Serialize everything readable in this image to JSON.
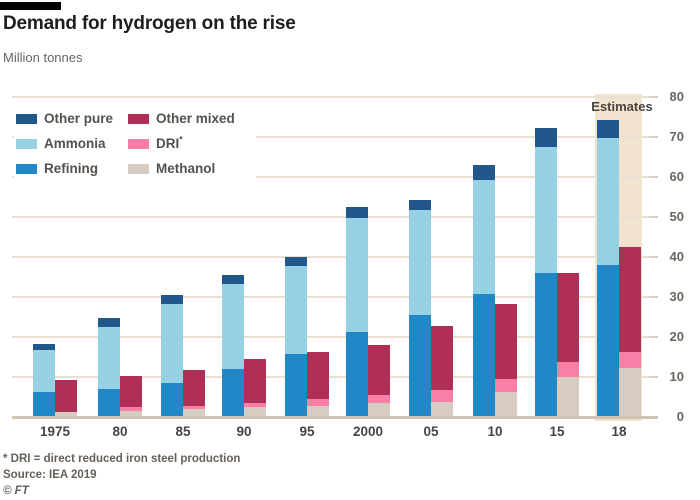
{
  "header": {
    "title": "Demand for hydrogen on the rise",
    "subtitle": "Million tonnes"
  },
  "estimates_label": "Estimates",
  "legend": {
    "columns": [
      [
        {
          "label": "Other pure",
          "color_key": "other_pure"
        },
        {
          "label": "Ammonia",
          "color_key": "ammonia"
        },
        {
          "label": "Refining",
          "color_key": "refining"
        }
      ],
      [
        {
          "label": "Other mixed",
          "color_key": "other_mixed"
        },
        {
          "label": "DRI",
          "sup": "*",
          "color_key": "dri"
        },
        {
          "label": "Methanol",
          "color_key": "methanol"
        }
      ]
    ]
  },
  "colors": {
    "other_pure": "#21578a",
    "ammonia": "#96d1e4",
    "refining": "#2287c6",
    "other_mixed": "#b02f57",
    "dri": "#f97fa7",
    "methanol": "#d6ccc1",
    "estimates_band": "#f2e3cf",
    "gridline": "#e9e0d2",
    "baseline": "#cfc4b5",
    "tick": "#d9cebf"
  },
  "chart_data": {
    "type": "bar",
    "stacked": true,
    "title": "Demand for hydrogen on the rise",
    "ylabel": "Million tonnes",
    "categories": [
      "1975",
      "80",
      "85",
      "90",
      "95",
      "2000",
      "05",
      "10",
      "15",
      "18"
    ],
    "stacks": [
      {
        "name": "pure",
        "series": [
          {
            "name": "Refining",
            "color_key": "refining",
            "values": [
              6.3,
              6.9,
              8.4,
              12.0,
              15.8,
              21.3,
              25.4,
              30.8,
              35.9,
              38.0
            ]
          },
          {
            "name": "Ammonia",
            "color_key": "ammonia",
            "values": [
              10.4,
              15.5,
              19.8,
              21.3,
              22.0,
              28.4,
              26.3,
              28.5,
              31.7,
              31.8
            ]
          },
          {
            "name": "Other pure",
            "color_key": "other_pure",
            "values": [
              1.6,
              2.3,
              2.3,
              2.1,
              2.2,
              2.7,
              2.5,
              3.7,
              4.7,
              4.4
            ]
          }
        ]
      },
      {
        "name": "mixed",
        "series": [
          {
            "name": "Methanol",
            "color_key": "methanol",
            "values": [
              1.2,
              1.4,
              1.9,
              2.4,
              2.8,
              3.6,
              3.8,
              6.3,
              10.1,
              12.2
            ]
          },
          {
            "name": "DRI",
            "color_key": "dri",
            "values": [
              0,
              1.0,
              0.9,
              1.0,
              1.8,
              1.8,
              2.9,
              3.1,
              3.7,
              4.1
            ]
          },
          {
            "name": "Other mixed",
            "color_key": "other_mixed",
            "values": [
              8.1,
              7.9,
              8.9,
              11.0,
              11.7,
              12.6,
              16.1,
              18.9,
              22.1,
              26.1
            ]
          }
        ]
      }
    ],
    "ylim": [
      0,
      80
    ],
    "yticks": [
      0,
      10,
      20,
      30,
      40,
      50,
      60,
      70,
      80
    ],
    "y_axis_side": "right",
    "grid": true,
    "estimate_categories": [
      "18"
    ],
    "annotation": "Estimates"
  },
  "footer": {
    "footnote": "* DRI = direct reduced iron steel production",
    "source": "Source: IEA 2019",
    "copyright": "© FT"
  }
}
